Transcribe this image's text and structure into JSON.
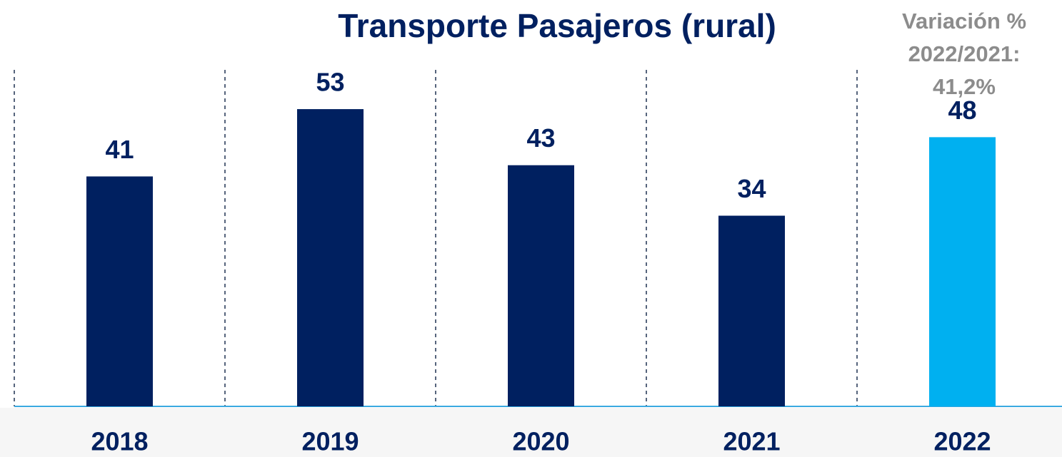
{
  "chart_data": {
    "type": "bar",
    "title": "Transporte Pasajeros (rural)",
    "categories": [
      "2018",
      "2019",
      "2020",
      "2021",
      "2022"
    ],
    "values": [
      41,
      53,
      43,
      34,
      48
    ],
    "colors": [
      "#002060",
      "#002060",
      "#002060",
      "#002060",
      "#00b0f0"
    ],
    "ylim": [
      0,
      60
    ],
    "annotation": [
      "Variación %",
      "2022/2021:",
      "41,2%"
    ]
  }
}
